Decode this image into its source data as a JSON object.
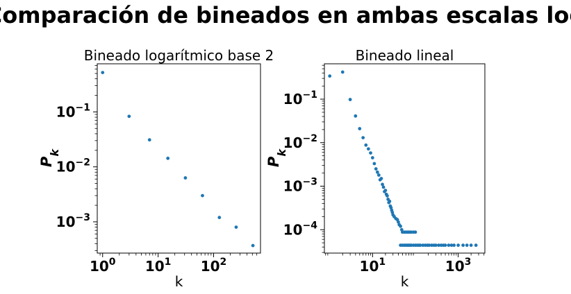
{
  "figure": {
    "suptitle": "Comparación de bineados en ambas escalas log"
  },
  "colors": {
    "points": "#1f77b4",
    "axes": "#000000"
  },
  "chart_data": [
    {
      "type": "scatter",
      "title": "Bineado logarítmico base 2",
      "xlabel": "k",
      "ylabel_base": "P",
      "ylabel_sub": "k",
      "xscale": "log",
      "yscale": "log",
      "xlim": [
        0.8,
        700
      ],
      "ylim": [
        0.00027,
        0.75
      ],
      "xticks": [
        {
          "v": 1,
          "b": "10",
          "e": "0"
        },
        {
          "v": 10,
          "b": "10",
          "e": "1"
        },
        {
          "v": 100,
          "b": "10",
          "e": "2"
        }
      ],
      "yticks": [
        {
          "v": 0.1,
          "b": "10",
          "e": "−1"
        },
        {
          "v": 0.01,
          "b": "10",
          "e": "−2"
        },
        {
          "v": 0.001,
          "b": "10",
          "e": "−3"
        }
      ],
      "x": [
        1,
        3,
        7,
        15,
        31,
        63,
        127,
        255,
        511
      ],
      "y": [
        0.52,
        0.083,
        0.031,
        0.0143,
        0.0063,
        0.003,
        0.0012,
        0.0008,
        0.00037
      ]
    },
    {
      "type": "scatter",
      "title": "Bineado lineal",
      "xlabel": "k",
      "ylabel_base": "P",
      "ylabel_sub": "k",
      "xscale": "log",
      "yscale": "log",
      "xlim": [
        0.75,
        4200
      ],
      "ylim": [
        2.9e-05,
        0.65
      ],
      "xticks": [
        {
          "v": 10,
          "b": "10",
          "e": "1"
        },
        {
          "v": 1000,
          "b": "10",
          "e": "3"
        }
      ],
      "yticks": [
        {
          "v": 0.1,
          "b": "10",
          "e": "−1"
        },
        {
          "v": 0.01,
          "b": "10",
          "e": "−2"
        },
        {
          "v": 0.001,
          "b": "10",
          "e": "−3"
        },
        {
          "v": 0.0001,
          "b": "10",
          "e": "−4"
        }
      ],
      "x": [
        1,
        2,
        3,
        4,
        5,
        6,
        7,
        8,
        9,
        10,
        11,
        12,
        13,
        14,
        15,
        16,
        17,
        18,
        19,
        20,
        21,
        22,
        23,
        24,
        25,
        26,
        27,
        28,
        29,
        30,
        32,
        35,
        38,
        40,
        42,
        45,
        48,
        50,
        55,
        60,
        65,
        70,
        75,
        80,
        90,
        100,
        45,
        50,
        55,
        60,
        65,
        70,
        75,
        80,
        90,
        100,
        110,
        120,
        130,
        150,
        170,
        190,
        210,
        240,
        270,
        300,
        350,
        400,
        450,
        500,
        600,
        700,
        800,
        1000,
        1300,
        1600,
        2000,
        2600
      ],
      "y": [
        0.34,
        0.42,
        0.098,
        0.041,
        0.021,
        0.013,
        0.0088,
        0.0072,
        0.0058,
        0.0045,
        0.0033,
        0.0025,
        0.0021,
        0.0018,
        0.0014,
        0.0015,
        0.0011,
        0.00095,
        0.00075,
        0.0008,
        0.00065,
        0.0006,
        0.0005,
        0.00042,
        0.00045,
        0.00035,
        0.00032,
        0.00028,
        0.00025,
        0.00022,
        0.0002,
        0.00018,
        0.00017,
        0.00015,
        0.00013,
        0.00012,
        0.0001,
        8.8e-05,
        8.8e-05,
        8.8e-05,
        8.8e-05,
        8.8e-05,
        8.8e-05,
        8.8e-05,
        8.8e-05,
        8.8e-05,
        4.4e-05,
        4.4e-05,
        4.4e-05,
        4.4e-05,
        4.4e-05,
        4.4e-05,
        4.4e-05,
        4.4e-05,
        4.4e-05,
        4.4e-05,
        4.4e-05,
        4.4e-05,
        4.4e-05,
        4.4e-05,
        4.4e-05,
        4.4e-05,
        4.4e-05,
        4.4e-05,
        4.4e-05,
        4.4e-05,
        4.4e-05,
        4.4e-05,
        4.4e-05,
        4.4e-05,
        4.4e-05,
        4.4e-05,
        4.4e-05,
        4.4e-05,
        4.4e-05,
        4.4e-05,
        4.4e-05,
        4.4e-05
      ]
    }
  ]
}
